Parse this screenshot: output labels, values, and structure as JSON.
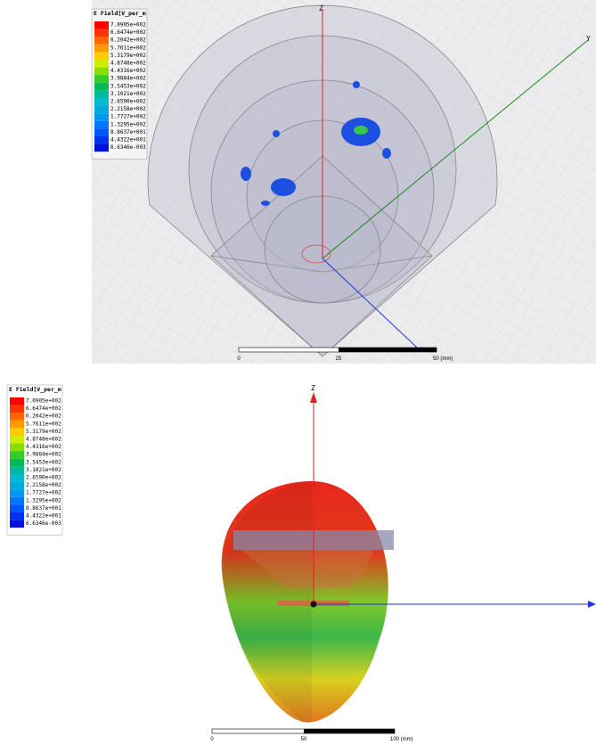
{
  "panels": [
    {
      "legend": {
        "title": "E Field[V_per_m",
        "labels": [
          "7.0905e+002",
          "6.6474e+002",
          "6.2042e+002",
          "5.7611e+002",
          "5.3179e+002",
          "4.8748e+002",
          "4.4316e+002",
          "3.9884e+002",
          "3.5453e+002",
          "3.1021e+002",
          "2.6590e+002",
          "2.2158e+002",
          "1.7727e+002",
          "1.3295e+002",
          "8.8637e+001",
          "4.4322e+001",
          "6.6346e-003"
        ]
      },
      "axes": {
        "z": "Z",
        "y": "Y"
      },
      "scale": [
        "0",
        "25",
        "50 (mm)"
      ]
    },
    {
      "legend": {
        "title": "E Field[V_per_m",
        "labels": [
          "7.0905e+002",
          "6.6474e+002",
          "6.2042e+002",
          "5.7611e+002",
          "5.3179e+002",
          "4.8748e+002",
          "4.4316e+002",
          "3.9884e+002",
          "3.5453e+002",
          "3.1021e+002",
          "2.6590e+002",
          "2.2158e+002",
          "1.7727e+002",
          "1.3295e+002",
          "8.8637e+001",
          "4.4322e+001",
          "6.6346e-003"
        ]
      },
      "axes": {
        "z": "Z"
      },
      "scale": [
        "0",
        "50",
        "100 (mm)"
      ]
    }
  ]
}
